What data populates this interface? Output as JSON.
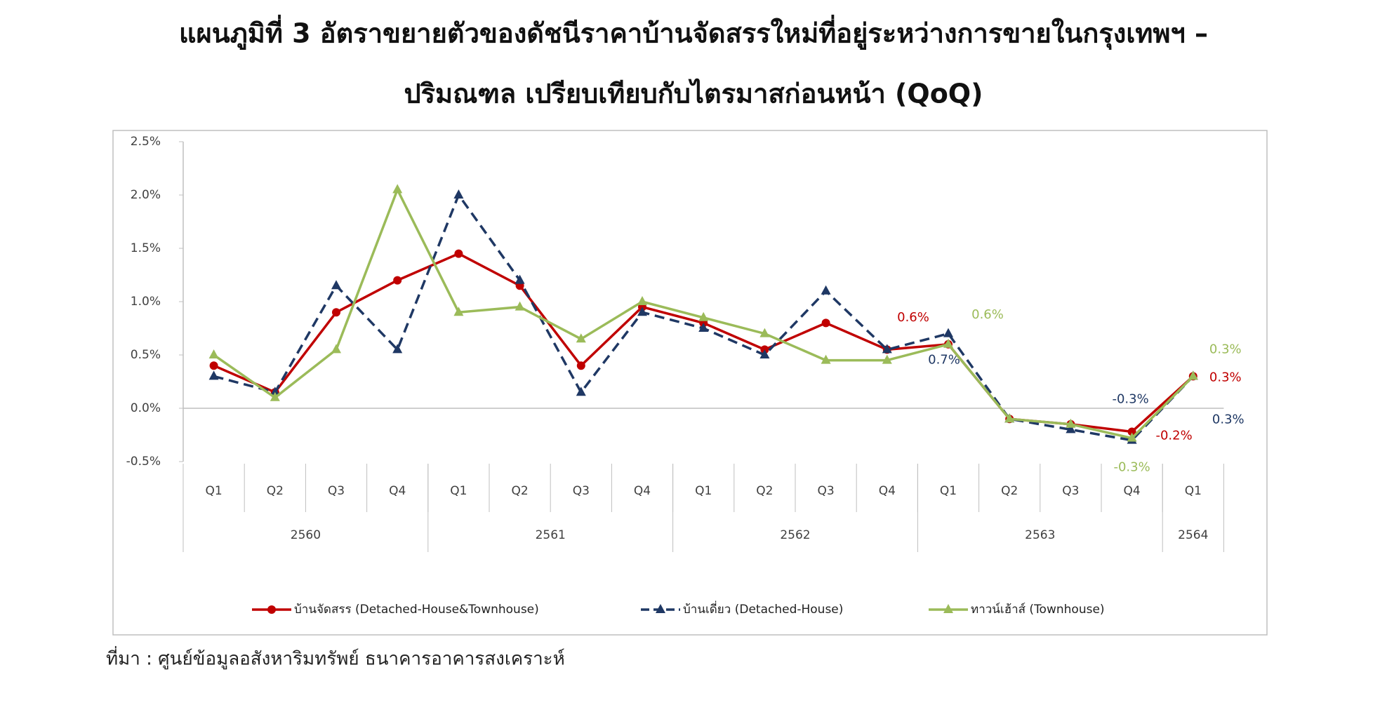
{
  "chart_data": {
    "type": "line",
    "title": [
      "แผนภูมิที่ 3 อัตราขยายตัวของดัชนีราคาบ้านจัดสรรใหม่ที่อยู่ระหว่างการขายในกรุงเทพฯ –",
      "ปริมณฑล เปรียบเทียบกับไตรมาสก่อนหน้า (QoQ)"
    ],
    "source": "ที่มา : ศูนย์ข้อมูลอสังหาริมทรัพย์ ธนาคารอาคารสงเคราะห์",
    "categories": [
      "Q1",
      "Q2",
      "Q3",
      "Q4",
      "Q1",
      "Q2",
      "Q3",
      "Q4",
      "Q1",
      "Q2",
      "Q3",
      "Q4",
      "Q1",
      "Q2",
      "Q3",
      "Q4",
      "Q1"
    ],
    "category_groups": [
      {
        "label": "2560",
        "count": 4
      },
      {
        "label": "2561",
        "count": 4
      },
      {
        "label": "2562",
        "count": 4
      },
      {
        "label": "2563",
        "count": 4
      },
      {
        "label": "2564",
        "count": 1
      }
    ],
    "ylim": [
      -0.5,
      2.5
    ],
    "yticks": [
      {
        "value": -0.5,
        "label": "-0.5%"
      },
      {
        "value": 0,
        "label": "0.0%"
      },
      {
        "value": 0.5,
        "label": "0.5%"
      },
      {
        "value": 1,
        "label": "1.0%"
      },
      {
        "value": 1.5,
        "label": "1.5%"
      },
      {
        "value": 2,
        "label": "2.0%"
      },
      {
        "value": 2.5,
        "label": "2.5%"
      }
    ],
    "grid": false,
    "legend": "bottom",
    "series": [
      {
        "name": "บ้านจัดสรร (Detached-House&Townhouse)",
        "color": "#c00000",
        "marker": "circle",
        "dash": false,
        "values": [
          0.4,
          0.15,
          0.9,
          1.2,
          1.45,
          1.15,
          0.4,
          0.95,
          0.8,
          0.55,
          0.8,
          0.55,
          0.6,
          -0.1,
          -0.15,
          -0.22,
          0.3
        ],
        "value_labels": [
          null,
          null,
          null,
          null,
          null,
          null,
          null,
          null,
          null,
          null,
          null,
          null,
          "0.6%",
          null,
          null,
          "-0.2%",
          "0.3%"
        ]
      },
      {
        "name": "บ้านเดี่ยว (Detached-House)",
        "color": "#1f3864",
        "marker": "triangle",
        "dash": true,
        "values": [
          0.3,
          0.15,
          1.15,
          0.55,
          2.0,
          1.2,
          0.15,
          0.9,
          0.75,
          0.5,
          1.1,
          0.55,
          0.7,
          -0.1,
          -0.2,
          -0.3,
          0.3
        ],
        "value_labels": [
          null,
          null,
          null,
          null,
          null,
          null,
          null,
          null,
          null,
          null,
          null,
          null,
          "0.7%",
          null,
          null,
          "-0.3%",
          "0.3%"
        ]
      },
      {
        "name": "ทาวน์เฮ้าส์ (Townhouse)",
        "color": "#9bbb59",
        "marker": "triangle",
        "dash": false,
        "values": [
          0.5,
          0.1,
          0.55,
          2.05,
          0.9,
          0.95,
          0.65,
          1.0,
          0.85,
          0.7,
          0.45,
          0.45,
          0.6,
          -0.1,
          -0.15,
          -0.28,
          0.3
        ],
        "value_labels": [
          null,
          null,
          null,
          null,
          null,
          null,
          null,
          null,
          null,
          null,
          null,
          null,
          "0.6%",
          null,
          null,
          "-0.3%",
          "0.3%"
        ]
      }
    ]
  }
}
